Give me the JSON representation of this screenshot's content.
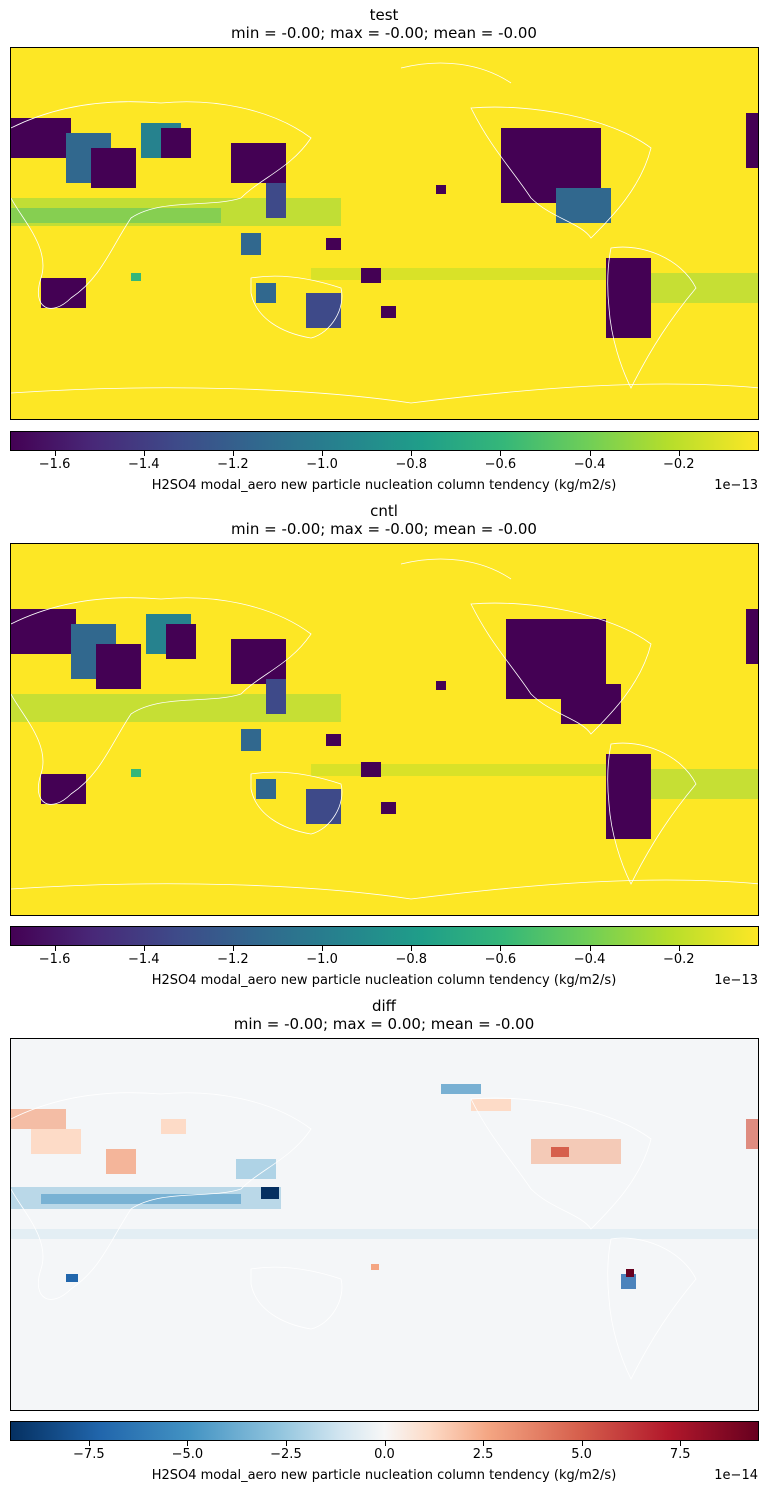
{
  "chart_data": [
    {
      "type": "heatmap",
      "title": "test",
      "subtitle": "min = -0.00; max = -0.00; mean = -0.00",
      "colormap": "viridis",
      "colorbar": {
        "label": "H2SO4 modal_aero new particle nucleation column tendency (kg/m2/s)",
        "offset_text": "1e−13",
        "range": [
          -1.7,
          -0.02
        ],
        "ticks": [
          -1.6,
          -1.4,
          -1.2,
          -1.0,
          -0.8,
          -0.6,
          -0.4,
          -0.2
        ],
        "tick_labels": [
          "−1.6",
          "−1.4",
          "−1.2",
          "−1.0",
          "−0.8",
          "−0.6",
          "−0.4",
          "−0.2"
        ]
      }
    },
    {
      "type": "heatmap",
      "title": "cntl",
      "subtitle": "min = -0.00; max = -0.00; mean = -0.00",
      "colormap": "viridis",
      "colorbar": {
        "label": "H2SO4 modal_aero new particle nucleation column tendency (kg/m2/s)",
        "offset_text": "1e−13",
        "range": [
          -1.7,
          -0.02
        ],
        "ticks": [
          -1.6,
          -1.4,
          -1.2,
          -1.0,
          -0.8,
          -0.6,
          -0.4,
          -0.2
        ],
        "tick_labels": [
          "−1.6",
          "−1.4",
          "−1.2",
          "−1.0",
          "−0.8",
          "−0.6",
          "−0.4",
          "−0.2"
        ]
      }
    },
    {
      "type": "heatmap",
      "title": "diff",
      "subtitle": "min = -0.00; max = 0.00; mean = -0.00",
      "colormap": "RdBu_r",
      "colorbar": {
        "label": "H2SO4 modal_aero new particle nucleation column tendency (kg/m2/s)",
        "offset_text": "1e−14",
        "range": [
          -9.5,
          9.5
        ],
        "ticks": [
          -7.5,
          -5.0,
          -2.5,
          0.0,
          2.5,
          5.0,
          7.5
        ],
        "tick_labels": [
          "−7.5",
          "−5.0",
          "−2.5",
          "0.0",
          "2.5",
          "5.0",
          "7.5"
        ]
      }
    }
  ],
  "colors": {
    "viridis_low": "#440154",
    "viridis_high": "#fde725",
    "rdbu_low": "#053061",
    "rdbu_mid": "#f7f7f7",
    "rdbu_high": "#67001f",
    "coastline": "#ffffff"
  }
}
